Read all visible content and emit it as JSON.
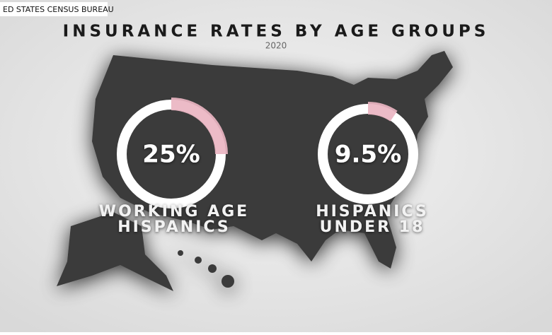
{
  "source": "ED STATES CENSUS BUREAU",
  "chart_data": {
    "type": "ring",
    "title": "INSURANCE RATES BY AGE GROUPS",
    "subtitle": "2020",
    "categories": [
      [
        "WORKING AGE",
        "HISPANICS"
      ],
      [
        "HISPANICS",
        "UNDER 18"
      ]
    ],
    "values": [
      25,
      9.5
    ],
    "value_labels": [
      "25%",
      "9.5%"
    ],
    "color": "#eab5c2",
    "track_color": "#ffffff"
  }
}
